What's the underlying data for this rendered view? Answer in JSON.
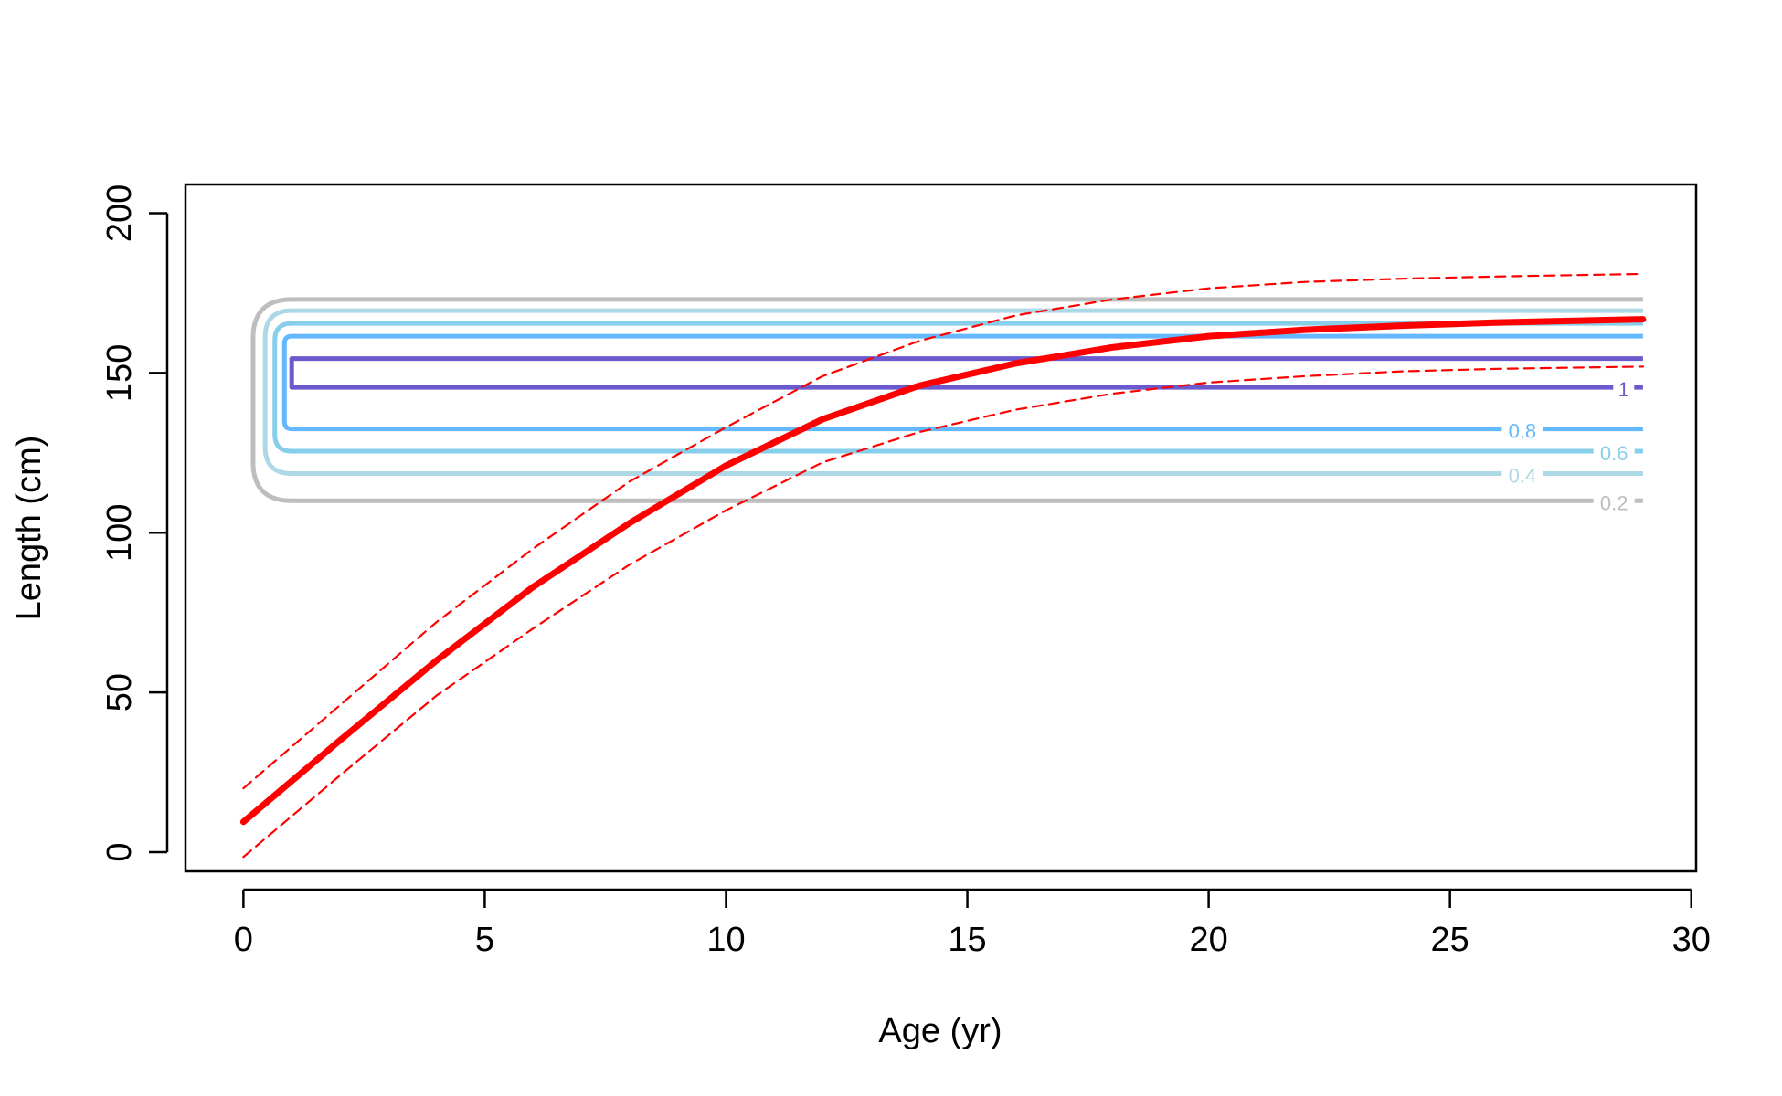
{
  "chart_data": {
    "type": "line",
    "title": "",
    "xlabel": "Age (yr)",
    "ylabel": "Length (cm)",
    "xlim": [
      -1.2,
      30.1
    ],
    "ylim": [
      -6,
      209
    ],
    "x_ticks": [
      0,
      5,
      10,
      15,
      20,
      25,
      30
    ],
    "y_ticks": [
      0,
      50,
      100,
      150,
      200
    ],
    "grid": false,
    "legend": "none",
    "series": [
      {
        "style": "solid-thick",
        "color": "#ff0000",
        "x": [
          0,
          2,
          4,
          6,
          8,
          10,
          12,
          14,
          16,
          18,
          20,
          22,
          24,
          26,
          29
        ],
        "y": [
          9.5,
          35,
          60,
          83,
          103,
          121,
          135.5,
          146,
          153,
          158,
          161.5,
          163.5,
          164.8,
          165.8,
          166.8
        ]
      },
      {
        "style": "dashed",
        "color": "#ff0000",
        "x": [
          0,
          2,
          4,
          6,
          8,
          10,
          12,
          14,
          16,
          18,
          20,
          22,
          24,
          26,
          29
        ],
        "y": [
          20,
          46,
          72,
          95,
          116,
          133,
          149,
          160,
          168,
          173,
          176.5,
          178.5,
          179.5,
          180.2,
          181
        ]
      },
      {
        "style": "dashed",
        "color": "#ff0000",
        "x": [
          0,
          2,
          4,
          6,
          8,
          10,
          12,
          14,
          16,
          18,
          20,
          22,
          24,
          26,
          29
        ],
        "y": [
          -1.5,
          24,
          49,
          70,
          90,
          107,
          122,
          131.5,
          138.5,
          143.5,
          147,
          149,
          150.5,
          151.3,
          152
        ]
      }
    ],
    "contours": [
      {
        "level": "0.2",
        "color": "#bebebe",
        "ytop": 173.0,
        "ybot": 110.0,
        "xstart": 1.0,
        "xleft": 0.2,
        "xend": 29.0,
        "label_x": 28.4
      },
      {
        "level": "0.4",
        "color": "#add8e6",
        "ytop": 169.5,
        "ybot": 118.5,
        "xstart": 1.0,
        "xleft": 0.45,
        "xend": 29.0,
        "label_x": 26.5
      },
      {
        "level": "0.6",
        "color": "#87ceeb",
        "ytop": 165.5,
        "ybot": 125.5,
        "xstart": 1.0,
        "xleft": 0.65,
        "xend": 29.0,
        "label_x": 28.4
      },
      {
        "level": "0.8",
        "color": "#63b8ff",
        "ytop": 161.5,
        "ybot": 132.5,
        "xstart": 1.0,
        "xleft": 0.85,
        "xend": 29.0,
        "label_x": 26.5
      },
      {
        "level": "1",
        "color": "#6a5acd",
        "ytop": 154.5,
        "ybot": 145.5,
        "xstart": 1.0,
        "xleft": 1.0,
        "xend": 29.0,
        "label_x": 28.6
      }
    ]
  }
}
